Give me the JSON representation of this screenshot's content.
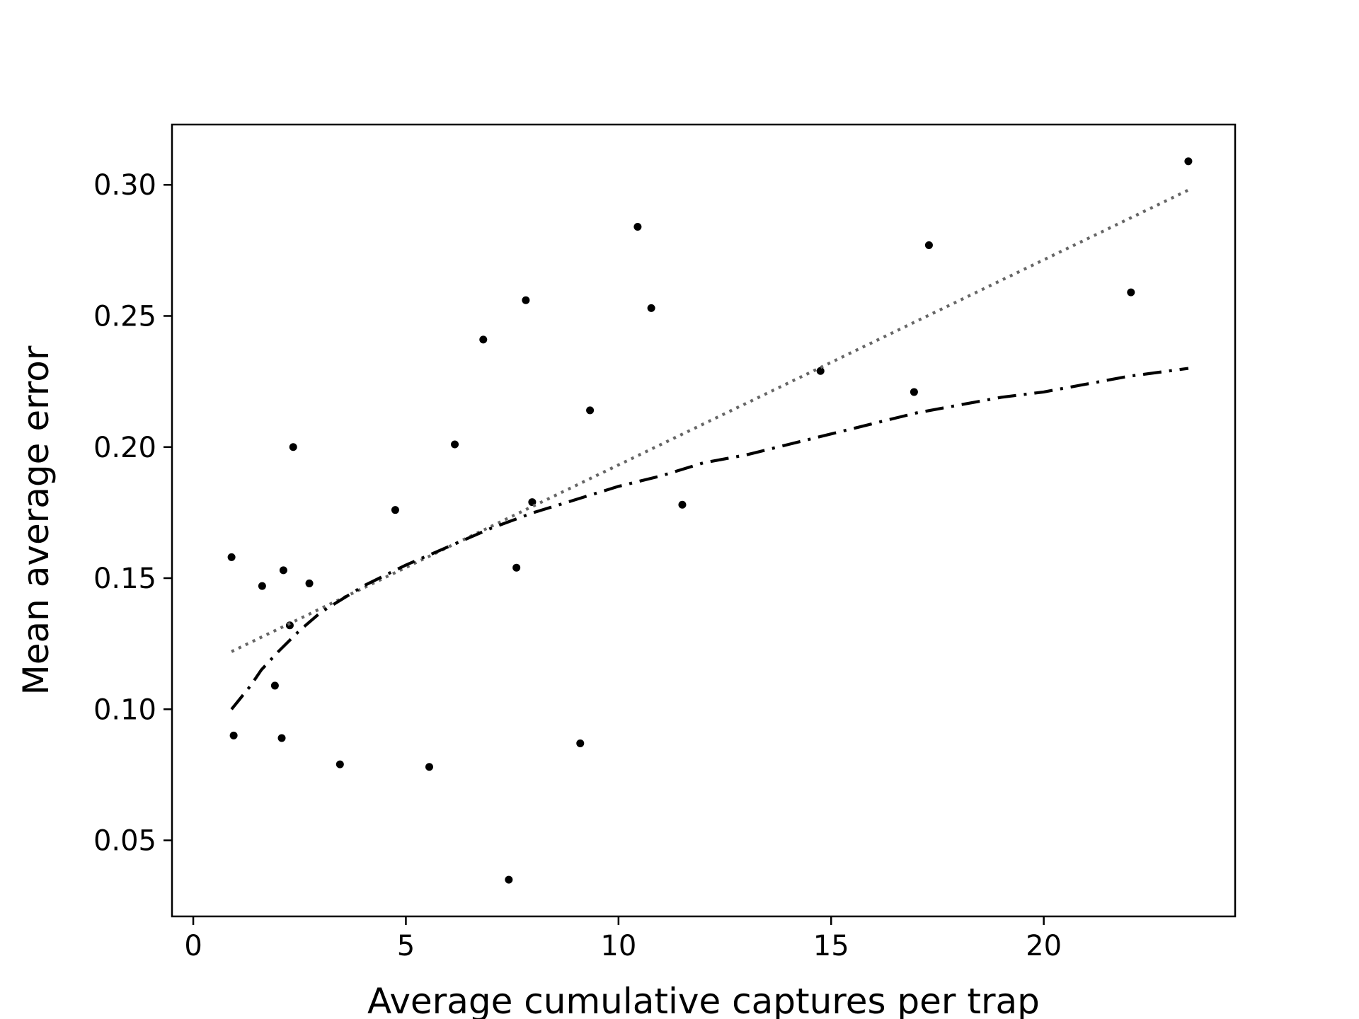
{
  "chart_data": {
    "type": "scatter",
    "title": "",
    "xlabel": "Average cumulative captures per trap",
    "ylabel": "Mean average error",
    "xlim": [
      -0.5,
      24.5
    ],
    "ylim": [
      0.021,
      0.323
    ],
    "x_ticks": [
      {
        "value": 0,
        "label": "0"
      },
      {
        "value": 5,
        "label": "5"
      },
      {
        "value": 10,
        "label": "10"
      },
      {
        "value": 15,
        "label": "15"
      },
      {
        "value": 20,
        "label": "20"
      }
    ],
    "y_ticks": [
      {
        "value": 0.05,
        "label": "0.05"
      },
      {
        "value": 0.1,
        "label": "0.10"
      },
      {
        "value": 0.15,
        "label": "0.15"
      },
      {
        "value": 0.2,
        "label": "0.20"
      },
      {
        "value": 0.25,
        "label": "0.25"
      },
      {
        "value": 0.3,
        "label": "0.30"
      }
    ],
    "grid": false,
    "legend": false,
    "series": [
      {
        "type": "scatter",
        "color": "#000000",
        "points": [
          {
            "x": 0.9,
            "y": 0.158
          },
          {
            "x": 0.95,
            "y": 0.09
          },
          {
            "x": 1.62,
            "y": 0.147
          },
          {
            "x": 1.92,
            "y": 0.109
          },
          {
            "x": 2.08,
            "y": 0.089
          },
          {
            "x": 2.12,
            "y": 0.153
          },
          {
            "x": 2.27,
            "y": 0.132
          },
          {
            "x": 2.35,
            "y": 0.2
          },
          {
            "x": 2.73,
            "y": 0.148
          },
          {
            "x": 3.45,
            "y": 0.079
          },
          {
            "x": 4.75,
            "y": 0.176
          },
          {
            "x": 5.55,
            "y": 0.078
          },
          {
            "x": 6.15,
            "y": 0.201
          },
          {
            "x": 6.82,
            "y": 0.241
          },
          {
            "x": 7.42,
            "y": 0.035
          },
          {
            "x": 7.6,
            "y": 0.154
          },
          {
            "x": 7.82,
            "y": 0.256
          },
          {
            "x": 7.97,
            "y": 0.179
          },
          {
            "x": 9.1,
            "y": 0.087
          },
          {
            "x": 9.33,
            "y": 0.214
          },
          {
            "x": 10.45,
            "y": 0.284
          },
          {
            "x": 10.77,
            "y": 0.253
          },
          {
            "x": 11.5,
            "y": 0.178
          },
          {
            "x": 14.75,
            "y": 0.229
          },
          {
            "x": 16.95,
            "y": 0.221
          },
          {
            "x": 17.3,
            "y": 0.277
          },
          {
            "x": 22.05,
            "y": 0.259
          },
          {
            "x": 23.4,
            "y": 0.309
          }
        ]
      },
      {
        "type": "line",
        "style": "dotted",
        "color": "#666666",
        "points": [
          {
            "x": 0.9,
            "y": 0.122
          },
          {
            "x": 23.4,
            "y": 0.298
          }
        ]
      },
      {
        "type": "line",
        "style": "dash-dot",
        "color": "#000000",
        "points": [
          {
            "x": 0.9,
            "y": 0.1
          },
          {
            "x": 1.1,
            "y": 0.104
          },
          {
            "x": 1.35,
            "y": 0.109
          },
          {
            "x": 1.6,
            "y": 0.115
          },
          {
            "x": 2.0,
            "y": 0.122
          },
          {
            "x": 2.5,
            "y": 0.13
          },
          {
            "x": 3.0,
            "y": 0.137
          },
          {
            "x": 3.5,
            "y": 0.142
          },
          {
            "x": 4.0,
            "y": 0.147
          },
          {
            "x": 5.0,
            "y": 0.155
          },
          {
            "x": 6.0,
            "y": 0.162
          },
          {
            "x": 7.0,
            "y": 0.169
          },
          {
            "x": 8.0,
            "y": 0.175
          },
          {
            "x": 9.0,
            "y": 0.18
          },
          {
            "x": 10.0,
            "y": 0.185
          },
          {
            "x": 11.0,
            "y": 0.189
          },
          {
            "x": 12.0,
            "y": 0.194
          },
          {
            "x": 13.0,
            "y": 0.197
          },
          {
            "x": 14.0,
            "y": 0.201
          },
          {
            "x": 15.0,
            "y": 0.205
          },
          {
            "x": 16.0,
            "y": 0.209
          },
          {
            "x": 17.0,
            "y": 0.213
          },
          {
            "x": 18.0,
            "y": 0.216
          },
          {
            "x": 19.0,
            "y": 0.219
          },
          {
            "x": 20.0,
            "y": 0.221
          },
          {
            "x": 21.0,
            "y": 0.224
          },
          {
            "x": 22.0,
            "y": 0.227
          },
          {
            "x": 23.4,
            "y": 0.23
          }
        ]
      }
    ]
  }
}
